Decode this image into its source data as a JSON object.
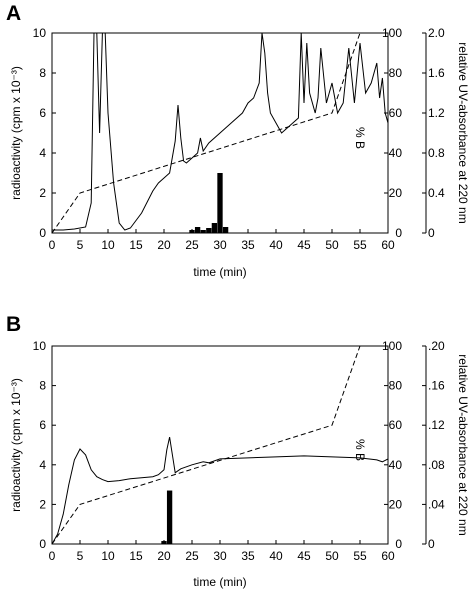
{
  "chart_data": [
    {
      "panel": "A",
      "type": "line",
      "xlabel": "time (min)",
      "xlim": [
        0,
        60
      ],
      "x_ticks": [
        "0",
        "5",
        "10",
        "15",
        "20",
        "25",
        "30",
        "35",
        "40",
        "45",
        "50",
        "55",
        "60"
      ],
      "ylabel": "radioactivity (cpm x 10⁻³)",
      "ylim": [
        0,
        10
      ],
      "y_ticks": [
        "0",
        "2",
        "4",
        "6",
        "8",
        "10"
      ],
      "y2label": "% B",
      "y2lim": [
        0,
        100
      ],
      "y2_ticks": [
        "0",
        "20",
        "40",
        "60",
        "80",
        "100"
      ],
      "y3label": "relative UV-absorbance at 220 nm",
      "y3lim": [
        0,
        2.0
      ],
      "y3_ticks": [
        "0",
        "0.4",
        "0.8",
        "1.2",
        "1.6",
        "2.0"
      ],
      "grid": false,
      "series": [
        {
          "style": "solid",
          "axis": "uv",
          "x": [
            0,
            2,
            4,
            6,
            7,
            7.5,
            8,
            8.5,
            9,
            9.5,
            10,
            11,
            12,
            13,
            14,
            16,
            18,
            19,
            20,
            21,
            22,
            22.5,
            23,
            23.5,
            24,
            25,
            26,
            26.5,
            27,
            28,
            30,
            32,
            34,
            35,
            36,
            37,
            37.5,
            38,
            38.5,
            39,
            40,
            41,
            42,
            43,
            44,
            44.5,
            45,
            45.5,
            46,
            47,
            47.5,
            48,
            49,
            50,
            51,
            52,
            53,
            54,
            55,
            56,
            57,
            58,
            58.5,
            59,
            59.5,
            60
          ],
          "y": [
            0.03,
            0.03,
            0.04,
            0.06,
            0.3,
            2.0,
            2.0,
            1.0,
            2.0,
            2.0,
            1.2,
            0.5,
            0.1,
            0.03,
            0.05,
            0.2,
            0.42,
            0.5,
            0.55,
            0.6,
            0.92,
            1.28,
            0.95,
            0.72,
            0.7,
            0.75,
            0.8,
            0.95,
            0.82,
            0.9,
            1.0,
            1.1,
            1.2,
            1.3,
            1.35,
            1.5,
            2.0,
            1.8,
            1.4,
            1.2,
            1.1,
            1.0,
            1.05,
            1.1,
            1.15,
            2.0,
            1.3,
            1.9,
            1.4,
            1.2,
            1.35,
            1.85,
            1.3,
            1.5,
            1.2,
            1.3,
            1.85,
            1.3,
            1.9,
            1.4,
            1.5,
            1.7,
            1.35,
            1.55,
            1.2,
            1.1
          ]
        },
        {
          "style": "dashed",
          "axis": "percent_b",
          "x": [
            0,
            5,
            50,
            55
          ],
          "y": [
            0,
            20,
            60,
            100
          ]
        },
        {
          "style": "bar",
          "axis": "radioactivity",
          "x": [
            25,
            26,
            27,
            28,
            29,
            30,
            31
          ],
          "y": [
            0.15,
            0.3,
            0.15,
            0.25,
            0.5,
            3.0,
            0.3
          ]
        }
      ]
    },
    {
      "panel": "B",
      "type": "line",
      "xlabel": "time (min)",
      "xlim": [
        0,
        60
      ],
      "x_ticks": [
        "0",
        "5",
        "10",
        "15",
        "20",
        "25",
        "30",
        "35",
        "40",
        "45",
        "50",
        "55",
        "60"
      ],
      "ylabel": "radioactivity (cpm x 10⁻³)",
      "ylim": [
        0,
        10
      ],
      "y_ticks": [
        "0",
        "2",
        "4",
        "6",
        "8",
        "10"
      ],
      "y2label": "% B",
      "y2lim": [
        0,
        100
      ],
      "y2_ticks": [
        "0",
        "20",
        "40",
        "60",
        "80",
        "100"
      ],
      "y3label": "relative UV-absorbance at 220 nm",
      "y3lim": [
        0,
        0.2
      ],
      "y3_ticks": [
        "0",
        ".04",
        ".08",
        ".12",
        ".16",
        ".20"
      ],
      "grid": false,
      "series": [
        {
          "style": "solid",
          "axis": "uv",
          "x": [
            0,
            1,
            2,
            3,
            4,
            5,
            6,
            7,
            8,
            9,
            10,
            12,
            14,
            16,
            18,
            19,
            20,
            20.5,
            21,
            21.5,
            22,
            23,
            25,
            27,
            28,
            30,
            35,
            40,
            45,
            50,
            55,
            58,
            59,
            60
          ],
          "y": [
            0.0,
            0.01,
            0.03,
            0.06,
            0.085,
            0.096,
            0.09,
            0.075,
            0.068,
            0.065,
            0.063,
            0.064,
            0.066,
            0.067,
            0.068,
            0.07,
            0.075,
            0.095,
            0.108,
            0.09,
            0.072,
            0.076,
            0.08,
            0.083,
            0.082,
            0.086,
            0.087,
            0.088,
            0.089,
            0.088,
            0.087,
            0.085,
            0.083,
            0.086
          ]
        },
        {
          "style": "dashed",
          "axis": "percent_b",
          "x": [
            0,
            5,
            50,
            55
          ],
          "y": [
            0,
            20,
            60,
            100
          ]
        },
        {
          "style": "bar",
          "axis": "radioactivity",
          "x": [
            20,
            21
          ],
          "y": [
            0.15,
            2.7
          ]
        }
      ]
    }
  ]
}
